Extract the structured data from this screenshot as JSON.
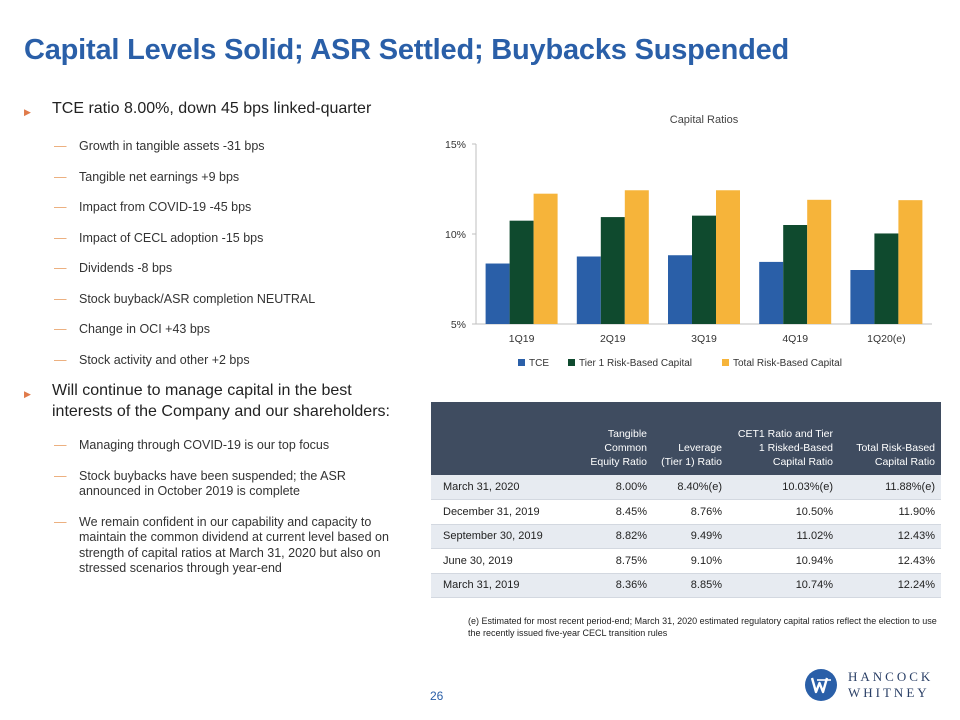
{
  "title": "Capital Levels Solid; ASR Settled; Buybacks Suspended",
  "bullets": [
    {
      "text": "TCE ratio 8.00%, down 45 bps linked-quarter",
      "subs": [
        "Growth in tangible assets -31 bps",
        "Tangible net earnings +9 bps",
        "Impact from COVID-19 -45 bps",
        "Impact of CECL adoption -15 bps",
        "Dividends -8 bps",
        "Stock buyback/ASR completion NEUTRAL",
        "Change in OCI +43 bps",
        "Stock activity and other +2 bps"
      ]
    },
    {
      "text": "Will continue to manage capital in the best interests of the Company and our shareholders:",
      "subs": [
        "Managing through COVID-19 is our top focus",
        "Stock buybacks have been suspended; the ASR announced in October 2019 is complete",
        "We remain confident in our capability and capacity to maintain the common dividend at current level based on strength of capital ratios at March 31, 2020 but also on stressed scenarios through year-end"
      ]
    }
  ],
  "chart_data": {
    "type": "bar",
    "title": "Capital Ratios",
    "categories": [
      "1Q19",
      "2Q19",
      "3Q19",
      "4Q19",
      "1Q20(e)"
    ],
    "series": [
      {
        "name": "TCE",
        "color": "#2a5fa8",
        "values": [
          8.36,
          8.75,
          8.82,
          8.45,
          8.0
        ]
      },
      {
        "name": "Tier 1 Risk-Based Capital",
        "color": "#0f4a2e",
        "values": [
          10.74,
          10.94,
          11.02,
          10.5,
          10.03
        ]
      },
      {
        "name": "Total Risk-Based Capital",
        "color": "#f6b43a",
        "values": [
          12.24,
          12.43,
          12.43,
          11.9,
          11.88
        ]
      }
    ],
    "ylim": [
      5,
      15
    ],
    "yticks": [
      5,
      10,
      15
    ],
    "ytick_labels": [
      "5%",
      "10%",
      "15%"
    ],
    "legend": "bottom",
    "grid": false
  },
  "table": {
    "headers": [
      "",
      "Tangible Common Equity Ratio",
      "Leverage (Tier 1) Ratio",
      "CET1 Ratio and Tier 1 Risked-Based Capital Ratio",
      "Total Risk-Based Capital Ratio"
    ],
    "rows": [
      [
        "March 31, 2020",
        "8.00%",
        "8.40%(e)",
        "10.03%(e)",
        "11.88%(e)"
      ],
      [
        "December 31, 2019",
        "8.45%",
        "8.76%",
        "10.50%",
        "11.90%"
      ],
      [
        "September 30, 2019",
        "8.82%",
        "9.49%",
        "11.02%",
        "12.43%"
      ],
      [
        "June 30, 2019",
        "8.75%",
        "9.10%",
        "10.94%",
        "12.43%"
      ],
      [
        "March 31, 2019",
        "8.36%",
        "8.85%",
        "10.74%",
        "12.24%"
      ]
    ]
  },
  "footnote": "(e) Estimated for most recent period-end; March 31, 2020 estimated regulatory capital ratios reflect the election to use the recently issued five-year CECL transition rules",
  "page_number": "26",
  "logo": {
    "line1": "HANCOCK",
    "line2": "WHITNEY",
    "color": "#2a3f66"
  }
}
